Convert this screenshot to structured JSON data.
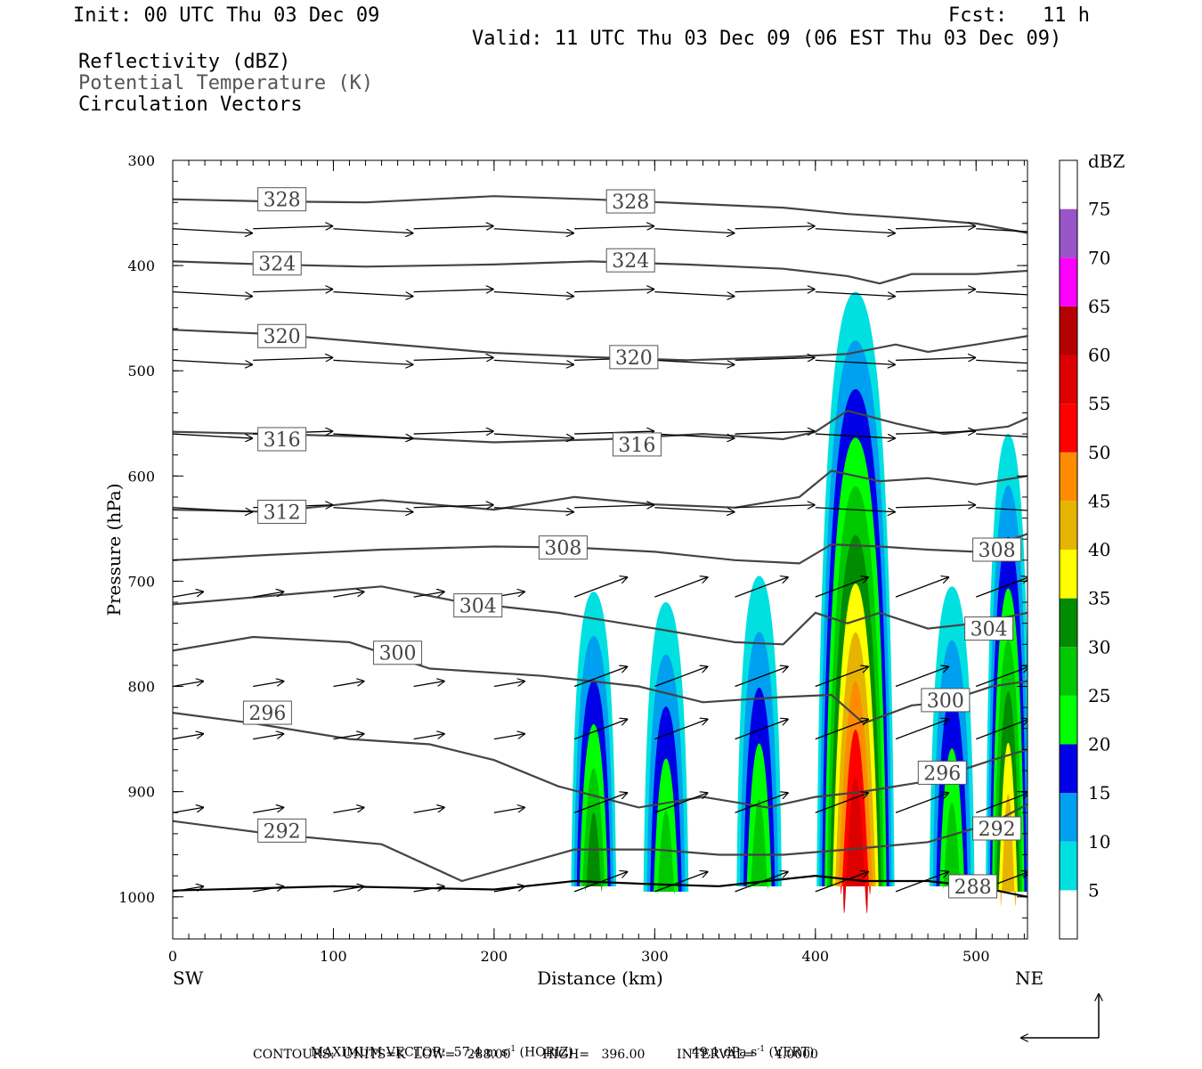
{
  "header": {
    "init": "Init: 00 UTC Thu 03 Dec 09",
    "fcst": "Fcst:   11 h",
    "valid": "Valid: 11 UTC Thu 03 Dec 09 (06 EST Thu 03 Dec 09)",
    "fields": [
      "Reflectivity (dBZ)",
      "Potential Temperature (K)",
      "Circulation Vectors"
    ]
  },
  "chart_data": {
    "type": "cross-section",
    "xlabel": "Distance (km)",
    "ylabel": "Pressure (hPa)",
    "x_end_labels": [
      "SW",
      "NE"
    ],
    "xlim": [
      0,
      532
    ],
    "ylim": [
      300,
      1040
    ],
    "xticks": [
      0,
      100,
      200,
      300,
      400,
      500
    ],
    "yticks": [
      300,
      400,
      500,
      600,
      700,
      800,
      900,
      1000
    ],
    "colorbar": {
      "title": "dBZ",
      "levels": [
        5,
        10,
        15,
        20,
        25,
        30,
        35,
        40,
        45,
        50,
        55,
        60,
        65,
        70,
        75
      ],
      "colors": [
        "#ffffff",
        "#00e0e0",
        "#00a0f0",
        "#0000e6",
        "#00ff00",
        "#00c800",
        "#008c00",
        "#ffff00",
        "#e6b400",
        "#ff8c00",
        "#ff0000",
        "#dc0000",
        "#b40000",
        "#ff00ff",
        "#9955c8",
        "#ffffff"
      ]
    },
    "theta_contours": [
      {
        "label": "328",
        "label_pos": [
          [
            53,
            337
          ],
          [
            270,
            339
          ]
        ],
        "points": [
          [
            0,
            337
          ],
          [
            60,
            339
          ],
          [
            120,
            340
          ],
          [
            200,
            334
          ],
          [
            260,
            337
          ],
          [
            320,
            341
          ],
          [
            380,
            345
          ],
          [
            420,
            351
          ],
          [
            460,
            355
          ],
          [
            500,
            360
          ],
          [
            532,
            369
          ]
        ]
      },
      {
        "label": "324",
        "label_pos": [
          [
            50,
            398
          ],
          [
            270,
            395
          ]
        ],
        "points": [
          [
            0,
            396
          ],
          [
            60,
            399
          ],
          [
            120,
            401
          ],
          [
            200,
            399
          ],
          [
            260,
            396
          ],
          [
            320,
            399
          ],
          [
            380,
            403
          ],
          [
            420,
            410
          ],
          [
            440,
            417
          ],
          [
            460,
            408
          ],
          [
            500,
            408
          ],
          [
            532,
            405
          ]
        ]
      },
      {
        "label": "320",
        "label_pos": [
          [
            53,
            467
          ],
          [
            272,
            487
          ]
        ],
        "points": [
          [
            0,
            461
          ],
          [
            60,
            465
          ],
          [
            130,
            474
          ],
          [
            200,
            483
          ],
          [
            260,
            487
          ],
          [
            320,
            490
          ],
          [
            380,
            487
          ],
          [
            420,
            484
          ],
          [
            450,
            475
          ],
          [
            470,
            482
          ],
          [
            500,
            475
          ],
          [
            532,
            467
          ]
        ]
      },
      {
        "label": "316",
        "label_pos": [
          [
            53,
            565
          ],
          [
            274,
            570
          ]
        ],
        "points": [
          [
            0,
            558
          ],
          [
            60,
            560
          ],
          [
            130,
            563
          ],
          [
            200,
            568
          ],
          [
            270,
            565
          ],
          [
            330,
            560
          ],
          [
            380,
            565
          ],
          [
            400,
            558
          ],
          [
            420,
            538
          ],
          [
            450,
            550
          ],
          [
            480,
            560
          ],
          [
            520,
            553
          ],
          [
            532,
            545
          ]
        ]
      },
      {
        "label": "312",
        "label_pos": [
          [
            53,
            634
          ],
          [
            0,
            0
          ]
        ],
        "points": [
          [
            0,
            632
          ],
          [
            60,
            634
          ],
          [
            130,
            623
          ],
          [
            200,
            632
          ],
          [
            250,
            620
          ],
          [
            300,
            627
          ],
          [
            350,
            630
          ],
          [
            390,
            620
          ],
          [
            410,
            595
          ],
          [
            440,
            605
          ],
          [
            470,
            602
          ],
          [
            500,
            608
          ],
          [
            532,
            600
          ]
        ]
      },
      {
        "label": "308",
        "label_pos": [
          [
            228,
            668
          ],
          [
            498,
            670
          ]
        ],
        "points": [
          [
            0,
            680
          ],
          [
            60,
            675
          ],
          [
            130,
            670
          ],
          [
            200,
            667
          ],
          [
            250,
            668
          ],
          [
            300,
            672
          ],
          [
            350,
            680
          ],
          [
            390,
            683
          ],
          [
            410,
            665
          ],
          [
            440,
            667
          ],
          [
            470,
            670
          ],
          [
            500,
            672
          ],
          [
            532,
            655
          ]
        ]
      },
      {
        "label": "304",
        "label_pos": [
          [
            175,
            723
          ],
          [
            493,
            745
          ]
        ],
        "points": [
          [
            0,
            722
          ],
          [
            60,
            714
          ],
          [
            130,
            705
          ],
          [
            180,
            720
          ],
          [
            240,
            730
          ],
          [
            300,
            745
          ],
          [
            350,
            758
          ],
          [
            380,
            760
          ],
          [
            400,
            730
          ],
          [
            420,
            740
          ],
          [
            440,
            730
          ],
          [
            470,
            745
          ],
          [
            500,
            740
          ],
          [
            532,
            730
          ]
        ]
      },
      {
        "label": "300",
        "label_pos": [
          [
            125,
            768
          ],
          [
            466,
            813
          ]
        ],
        "points": [
          [
            0,
            766
          ],
          [
            50,
            753
          ],
          [
            110,
            758
          ],
          [
            160,
            783
          ],
          [
            230,
            790
          ],
          [
            290,
            800
          ],
          [
            330,
            815
          ],
          [
            380,
            810
          ],
          [
            410,
            808
          ],
          [
            430,
            835
          ],
          [
            460,
            818
          ],
          [
            480,
            815
          ],
          [
            510,
            800
          ],
          [
            532,
            795
          ]
        ]
      },
      {
        "label": "296",
        "label_pos": [
          [
            44,
            825
          ],
          [
            464,
            882
          ]
        ],
        "points": [
          [
            0,
            825
          ],
          [
            50,
            835
          ],
          [
            110,
            850
          ],
          [
            160,
            855
          ],
          [
            200,
            870
          ],
          [
            240,
            895
          ],
          [
            290,
            915
          ],
          [
            330,
            905
          ],
          [
            370,
            915
          ],
          [
            400,
            905
          ],
          [
            430,
            900
          ],
          [
            470,
            890
          ],
          [
            510,
            870
          ],
          [
            532,
            860
          ]
        ]
      },
      {
        "label": "292",
        "label_pos": [
          [
            53,
            937
          ],
          [
            498,
            935
          ]
        ],
        "points": [
          [
            0,
            928
          ],
          [
            60,
            940
          ],
          [
            130,
            950
          ],
          [
            180,
            985
          ],
          [
            250,
            955
          ],
          [
            300,
            955
          ],
          [
            340,
            960
          ],
          [
            380,
            960
          ],
          [
            420,
            955
          ],
          [
            470,
            948
          ],
          [
            510,
            930
          ],
          [
            532,
            912
          ]
        ]
      },
      {
        "label": "288",
        "label_pos": [
          [
            483,
            990
          ],
          [
            0,
            0
          ]
        ],
        "points": [
          [
            0,
            994
          ],
          [
            100,
            990
          ],
          [
            200,
            993
          ],
          [
            250,
            985
          ],
          [
            300,
            988
          ],
          [
            340,
            990
          ],
          [
            400,
            980
          ],
          [
            430,
            985
          ],
          [
            470,
            985
          ],
          [
            500,
            990
          ],
          [
            532,
            1000
          ]
        ]
      }
    ],
    "reflectivity_cells": [
      {
        "center_x": 262,
        "base_p": 990,
        "top_p": 710,
        "max_dbz": 30
      },
      {
        "center_x": 307,
        "base_p": 995,
        "top_p": 720,
        "max_dbz": 25
      },
      {
        "center_x": 365,
        "base_p": 990,
        "top_p": 695,
        "max_dbz": 25
      },
      {
        "center_x": 425,
        "base_p": 990,
        "top_p": 425,
        "max_dbz": 55
      },
      {
        "center_x": 485,
        "base_p": 990,
        "top_p": 705,
        "max_dbz": 25
      },
      {
        "center_x": 520,
        "base_p": 995,
        "top_p": 560,
        "max_dbz": 40
      }
    ],
    "vector_rows_p": [
      365,
      425,
      490,
      560,
      630,
      715,
      800,
      850,
      920,
      995
    ]
  },
  "footer": {
    "max_vector": "MAXIMUM VECTOR:  57.4 m s",
    "max_vector_sup": "-1",
    "horiz": " (HORIZ)",
    "vert_val": "49.1 dPa s",
    "vert_sup": "-1",
    "vert": " (VERT)",
    "contours": "CONTOURS:  UNITS=K  LOW=   288.00        HIGH=   396.00        INTERVAL=     4.0000"
  }
}
